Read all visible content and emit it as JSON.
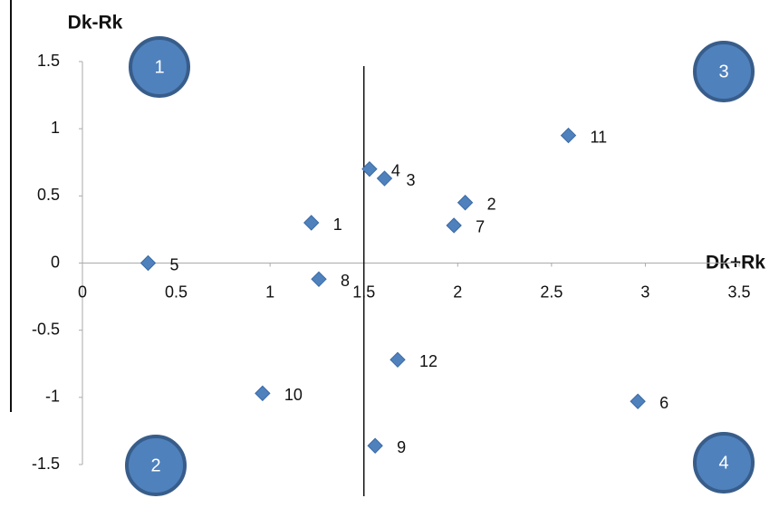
{
  "chart_data": {
    "type": "scatter",
    "x_label": "Dk+Rk",
    "y_label": "Dk-Rk",
    "series": [
      {
        "color": "#4f81bd",
        "labels": [
          "1",
          "2",
          "3",
          "4",
          "5",
          "6",
          "7",
          "8",
          "9",
          "10",
          "11",
          "12"
        ],
        "x": [
          1.22,
          2.04,
          1.61,
          1.53,
          0.35,
          2.96,
          1.98,
          1.26,
          1.56,
          0.96,
          2.59,
          1.68
        ],
        "values": [
          0.3,
          0.45,
          0.63,
          0.7,
          0,
          -1.03,
          0.28,
          -0.12,
          -1.36,
          -0.97,
          0.95,
          -0.72
        ]
      }
    ],
    "threshold_x": 1.5,
    "xlim": [
      0,
      3.5
    ],
    "xticks": [
      0,
      0.5,
      1,
      1.5,
      2,
      2.5,
      3,
      3.5
    ],
    "ylim": [
      -1.5,
      1.5
    ],
    "yticks": [
      1.5,
      1,
      0.5,
      0,
      -0.5,
      -1,
      -1.5
    ],
    "quadrants": [
      {
        "label": "1",
        "corner": "top-left"
      },
      {
        "label": "2",
        "corner": "bottom-left"
      },
      {
        "label": "3",
        "corner": "top-right"
      },
      {
        "label": "4",
        "corner": "bottom-right"
      }
    ]
  }
}
